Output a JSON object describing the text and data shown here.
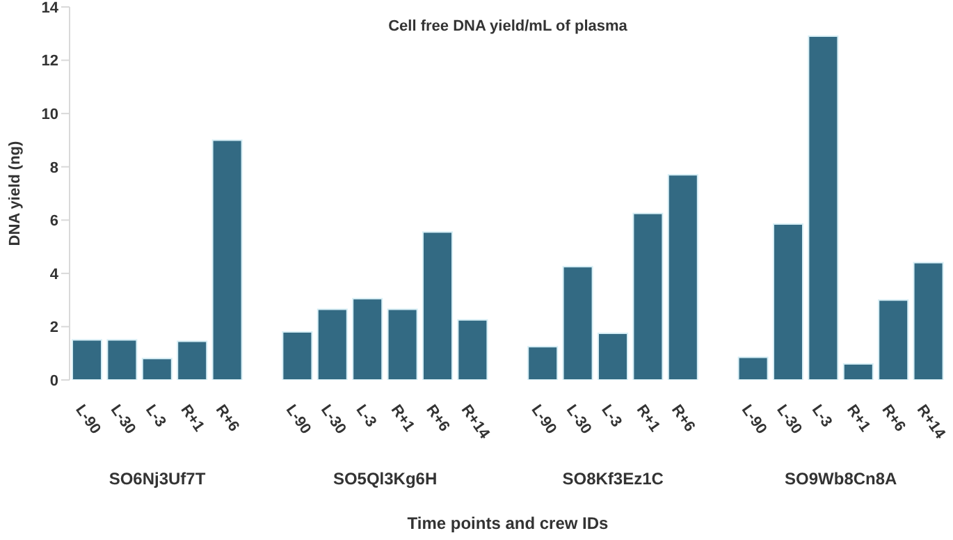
{
  "chart_data": {
    "type": "bar",
    "title": "Cell free DNA yield/mL of plasma",
    "xlabel": "Time points and crew IDs",
    "ylabel": "DNA yield (ng)",
    "categories": [
      "L-90",
      "L-30",
      "L-3",
      "R+1",
      "R+6",
      null,
      "L-90",
      "L-30",
      "L-3",
      "R+1",
      "R+6",
      "R+14",
      null,
      "L-90",
      "L-30",
      "L-3",
      "R+1",
      "R+6",
      null,
      "L-90",
      "L-30",
      "L-3",
      "R+1",
      "R+6",
      "R+14"
    ],
    "values": [
      1.5,
      1.5,
      0.8,
      1.45,
      9.0,
      null,
      1.8,
      2.65,
      3.05,
      2.65,
      5.55,
      2.25,
      null,
      1.25,
      4.25,
      1.75,
      6.25,
      7.7,
      null,
      0.85,
      5.85,
      12.9,
      0.6,
      3.0,
      4.4
    ],
    "color": "#336a83",
    "ylim": [
      0,
      14
    ],
    "yticks": [
      0,
      2,
      4,
      6,
      8,
      10,
      12,
      14
    ],
    "grid": false,
    "annotations": [
      "SO6Nj3Uf7T",
      "SO5Ql3Kg6H",
      "SO8Kf3Ez1C",
      "SO9Wb8Cn8A"
    ]
  }
}
